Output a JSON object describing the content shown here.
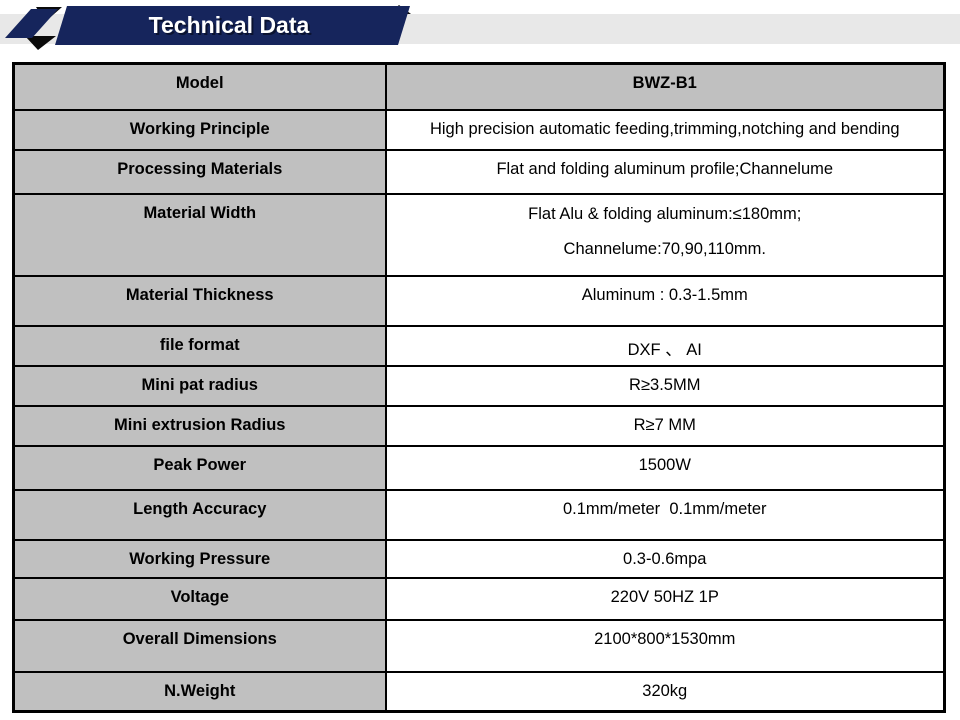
{
  "header": {
    "title": "Technical Data"
  },
  "colors": {
    "banner_navy": "#16255c",
    "strip_gray": "#e8e8e8",
    "cell_gray": "#c0c0c0",
    "border_black": "#000000",
    "banner_text": "#ffffff"
  },
  "table": {
    "rows": [
      {
        "label": "Model",
        "value": "BWZ-B1",
        "is_header": true
      },
      {
        "label": "Working Principle",
        "value": "High precision automatic feeding,trimming,notching and bending"
      },
      {
        "label": "Processing Materials",
        "value": "Flat and folding aluminum profile;Channelume"
      },
      {
        "label": "Material Width",
        "value_lines": [
          "Flat Alu & folding aluminum:≤180mm;",
          "Channelume:70,90,110mm."
        ]
      },
      {
        "label": "Material Thickness",
        "value": "Aluminum : 0.3-1.5mm"
      },
      {
        "label": "file format",
        "value": "DXF 、 AI"
      },
      {
        "label": "Mini pat radius",
        "value": "R≥3.5MM"
      },
      {
        "label": "Mini extrusion Radius",
        "value": "R≥7 MM"
      },
      {
        "label": "Peak Power",
        "value": "1500W"
      },
      {
        "label": "Length Accuracy",
        "value": "0.1mm/meter  0.1mm/meter"
      },
      {
        "label": "Working Pressure",
        "value": "0.3-0.6mpa"
      },
      {
        "label": "Voltage",
        "value": "220V 50HZ 1P"
      },
      {
        "label": "Overall Dimensions",
        "value": "2100*800*1530mm"
      },
      {
        "label": "N.Weight",
        "value": "320kg"
      }
    ]
  }
}
